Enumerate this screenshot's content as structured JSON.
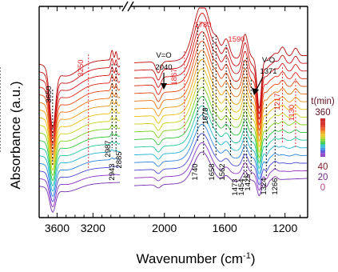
{
  "chart_data": {
    "type": "line",
    "xlabel": "Wavenumber (cm",
    "xlabel_sup": "-1",
    "xlabel_tail": ")",
    "ylabel": "Absorbance (a.u.)",
    "x_direction": "reversed",
    "x_segments": [
      [
        3800,
        2900
      ],
      [
        2200,
        1050
      ]
    ],
    "x_ticks": [
      3600,
      3200,
      2000,
      1600,
      1200
    ],
    "axis_break": "//",
    "legend": {
      "title": "t(min)",
      "labels": [
        "360",
        "40",
        "20",
        "0"
      ],
      "label_colors": [
        "#5c0f1e",
        "#8a1a2a",
        "#6a2a86",
        "#b8428c"
      ]
    },
    "series_colors": [
      "#7a2fb0",
      "#8a33c4",
      "#4a4ad8",
      "#2f86e0",
      "#26b4d4",
      "#22c6a0",
      "#30c640",
      "#7ad21e",
      "#c8d21a",
      "#ecbe12",
      "#f09a12",
      "#ec7212",
      "#e64a12",
      "#e02a14",
      "#d41818",
      "#c81010",
      "#b80c0c"
    ],
    "series_count": 17,
    "annotations": [
      {
        "label": "3650",
        "x": 3650,
        "color": "#000000",
        "guide": "#000000"
      },
      {
        "label": "3250",
        "x": 3250,
        "color": "#e8262a",
        "guide": "#e8262a"
      },
      {
        "label": "2987",
        "x": 2987,
        "color": "#000000",
        "guide": "#000000"
      },
      {
        "label": "2943",
        "x": 2943,
        "color": "#000000",
        "guide": "#000000"
      },
      {
        "label": "2885",
        "x": 2885,
        "color": "#000000",
        "guide": "#000000"
      },
      {
        "label": "V=O",
        "x": 2040,
        "color": "#000000"
      },
      {
        "label": "2040",
        "x": 2040,
        "color": "#000000"
      },
      {
        "label": "1867",
        "x": 1867,
        "color": "#e8262a",
        "guide": "#e8262a"
      },
      {
        "label": "1780",
        "x": 1780,
        "color": "#e8262a",
        "guide": "#000000"
      },
      {
        "label": "1740",
        "x": 1740,
        "color": "#000000",
        "guide": "#000000"
      },
      {
        "label": "1678",
        "x": 1678,
        "color": "#000000",
        "guide": "#000000"
      },
      {
        "label": "1658",
        "x": 1658,
        "color": "#000000",
        "guide": "#000000"
      },
      {
        "label": "1590",
        "x": 1590,
        "color": "#e8262a",
        "guide": "#000000"
      },
      {
        "label": "1562",
        "x": 1562,
        "color": "#000000",
        "guide": "#000000"
      },
      {
        "label": "1473",
        "x": 1473,
        "color": "#000000",
        "guide": "#000000"
      },
      {
        "label": "1454",
        "x": 1454,
        "color": "#000000",
        "guide": "#000000"
      },
      {
        "label": "1425",
        "x": 1425,
        "color": "#000000",
        "guide": "#000000"
      },
      {
        "label": "V-O",
        "x": 1371,
        "color": "#000000"
      },
      {
        "label": "1371",
        "x": 1371,
        "color": "#000000"
      },
      {
        "label": "1324",
        "x": 1324,
        "color": "#000000",
        "guide": "#000000"
      },
      {
        "label": "1266",
        "x": 1266,
        "color": "#000000",
        "guide": "#000000"
      },
      {
        "label": "1217",
        "x": 1217,
        "color": "#e8262a",
        "guide": "#e8262a"
      },
      {
        "label": "1130",
        "x": 1130,
        "color": "#e8262a",
        "guide": "#e8262a"
      }
    ]
  }
}
